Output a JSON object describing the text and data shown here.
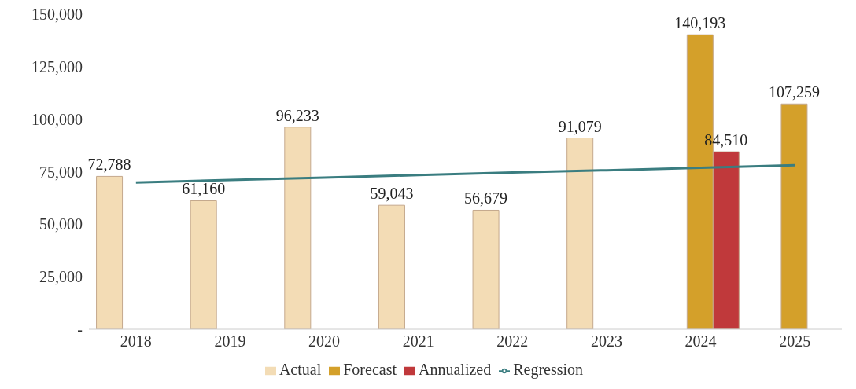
{
  "chart_data": {
    "type": "bar",
    "categories": [
      "2018",
      "2019",
      "2020",
      "2021",
      "2022",
      "2023",
      "2024",
      "2025"
    ],
    "series": [
      {
        "name": "Actual",
        "color": "#f3dcb5",
        "values": [
          72788,
          61160,
          96233,
          59043,
          56679,
          91079,
          null,
          null
        ],
        "value_labels": [
          "72,788",
          "61,160",
          "96,233",
          "59,043",
          "56,679",
          "91,079",
          null,
          null
        ]
      },
      {
        "name": "Forecast",
        "color": "#d4a02a",
        "values": [
          null,
          null,
          null,
          null,
          null,
          null,
          140193,
          107259
        ],
        "value_labels": [
          null,
          null,
          null,
          null,
          null,
          null,
          "140,193",
          "107,259"
        ]
      },
      {
        "name": "Annualized",
        "color": "#c0393b",
        "values": [
          null,
          null,
          null,
          null,
          null,
          null,
          84510,
          null
        ],
        "value_labels": [
          null,
          null,
          null,
          null,
          null,
          null,
          "84,510",
          null
        ]
      },
      {
        "name": "Regression",
        "type": "line",
        "color": "#3a7d80",
        "values": [
          69900,
          71100,
          72200,
          73400,
          74600,
          75700,
          76900,
          78100
        ]
      }
    ],
    "ylim": [
      0,
      150000
    ],
    "yticks": [
      {
        "value": 0,
        "label": "-"
      },
      {
        "value": 25000,
        "label": "25,000"
      },
      {
        "value": 50000,
        "label": "50,000"
      },
      {
        "value": 75000,
        "label": "75,000"
      },
      {
        "value": 100000,
        "label": "100,000"
      },
      {
        "value": 125000,
        "label": "125,000"
      },
      {
        "value": 150000,
        "label": "150,000"
      }
    ],
    "grid": false,
    "legend": "bottom",
    "marker": "none"
  }
}
